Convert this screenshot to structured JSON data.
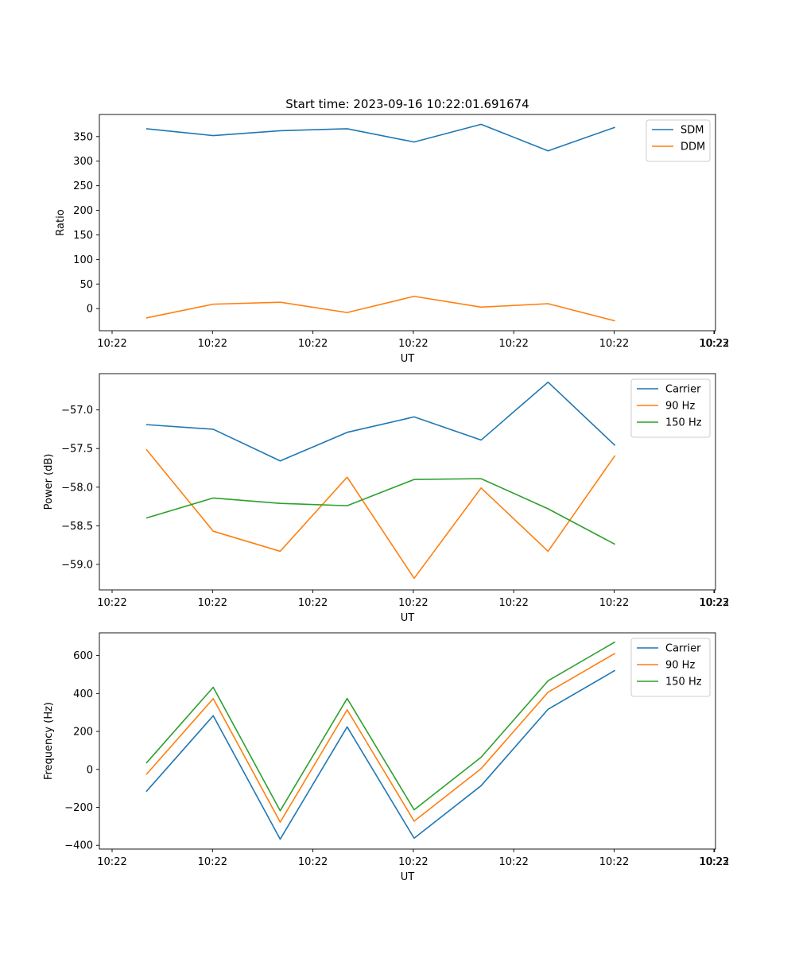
{
  "title": "Start time: 2023-09-16 10:22:01.691674",
  "colors": {
    "blue": "#1f77b4",
    "orange": "#ff7f0e",
    "green": "#2ca02c"
  },
  "chart_data": [
    {
      "type": "line",
      "xlabel": "UT",
      "ylabel": "Ratio",
      "x_tick_labels": [
        "10:22",
        "10:22",
        "10:22",
        "10:22",
        "10:22",
        "10:22",
        "10:22"
      ],
      "x_tick_last": "10:23",
      "x_range": [
        -0.2,
        9.0
      ],
      "y_range": [
        -45,
        395
      ],
      "y_ticks": [
        0,
        50,
        100,
        150,
        200,
        250,
        300,
        350
      ],
      "x": [
        0.5,
        1.5,
        2.5,
        3.5,
        4.5,
        5.5,
        6.5,
        7.5
      ],
      "series": [
        {
          "name": "SDM",
          "color": "#1f77b4",
          "values": [
            366,
            352,
            362,
            366,
            339,
            375,
            321,
            369
          ]
        },
        {
          "name": "DDM",
          "color": "#ff7f0e",
          "values": [
            -19,
            9,
            13,
            -8,
            25,
            3,
            10,
            -25
          ]
        }
      ],
      "legend": "top-right"
    },
    {
      "type": "line",
      "xlabel": "UT",
      "ylabel": "Power (dB)",
      "x_tick_labels": [
        "10:22",
        "10:22",
        "10:22",
        "10:22",
        "10:22",
        "10:22",
        "10:22"
      ],
      "x_tick_last": "10:23",
      "x_range": [
        -0.2,
        9.0
      ],
      "y_range": [
        -59.33,
        -56.53
      ],
      "y_ticks": [
        -59.0,
        -58.5,
        -58.0,
        -57.5,
        -57.0
      ],
      "x": [
        0.5,
        1.5,
        2.5,
        3.5,
        4.5,
        5.5,
        6.5,
        7.5
      ],
      "series": [
        {
          "name": "Carrier",
          "color": "#1f77b4",
          "values": [
            -57.19,
            -57.25,
            -57.66,
            -57.29,
            -57.09,
            -57.39,
            -56.64,
            -57.46
          ]
        },
        {
          "name": "90 Hz",
          "color": "#ff7f0e",
          "values": [
            -57.51,
            -58.57,
            -58.83,
            -57.87,
            -59.18,
            -58.01,
            -58.83,
            -57.59
          ]
        },
        {
          "name": "150 Hz",
          "color": "#2ca02c",
          "values": [
            -58.4,
            -58.14,
            -58.21,
            -58.24,
            -57.9,
            -57.89,
            -58.28,
            -58.74
          ]
        }
      ],
      "legend": "top-right"
    },
    {
      "type": "line",
      "xlabel": "UT",
      "ylabel": "Frequency (Hz)",
      "x_tick_labels": [
        "10:22",
        "10:22",
        "10:22",
        "10:22",
        "10:22",
        "10:22",
        "10:22"
      ],
      "x_tick_last": "10:23",
      "x_range": [
        -0.2,
        9.0
      ],
      "y_range": [
        -420,
        720
      ],
      "y_ticks": [
        -400,
        -200,
        0,
        200,
        400,
        600
      ],
      "x": [
        0.5,
        1.5,
        2.5,
        3.5,
        4.5,
        5.5,
        6.5,
        7.5
      ],
      "series": [
        {
          "name": "Carrier",
          "color": "#1f77b4",
          "values": [
            -117,
            283,
            -368,
            224,
            -363,
            -86,
            317,
            522
          ]
        },
        {
          "name": "90 Hz",
          "color": "#ff7f0e",
          "values": [
            -27,
            373,
            -278,
            314,
            -273,
            4,
            407,
            612
          ]
        },
        {
          "name": "150 Hz",
          "color": "#2ca02c",
          "values": [
            33,
            433,
            -218,
            374,
            -213,
            64,
            467,
            672
          ]
        }
      ],
      "legend": "top-right"
    }
  ]
}
